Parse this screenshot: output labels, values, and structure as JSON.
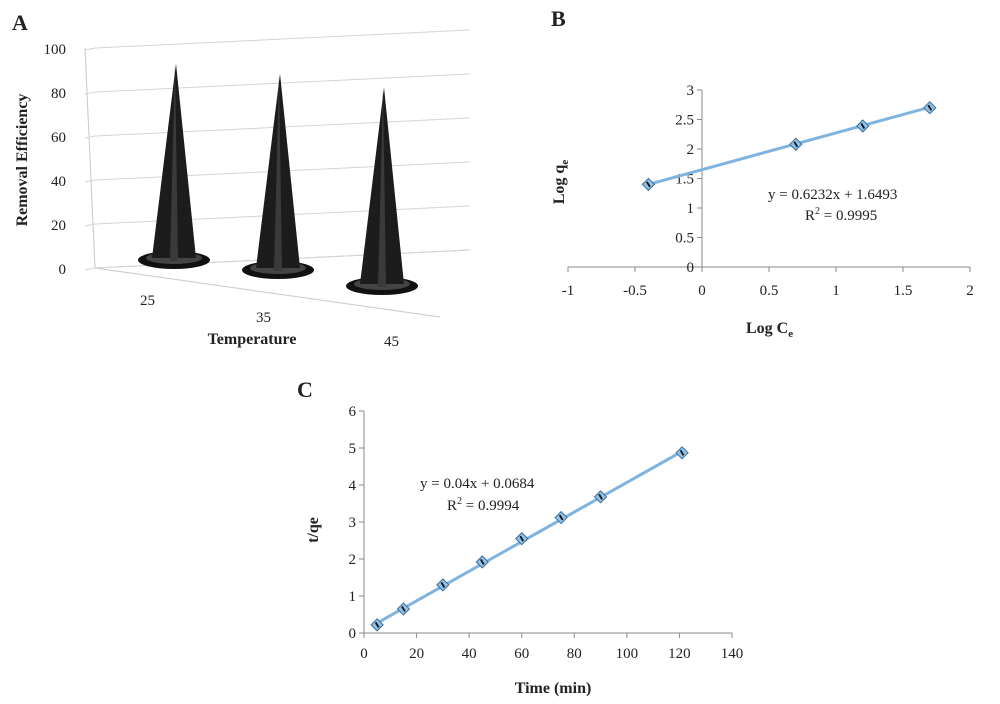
{
  "chart_data": [
    {
      "panel": "A",
      "type": "bar",
      "style": "3d-cone",
      "categories": [
        "25",
        "35",
        "45"
      ],
      "values": [
        82,
        82,
        83
      ],
      "xlabel": "Temperature",
      "ylabel": "Removal Efficiency",
      "ylim": [
        0,
        100
      ],
      "yticks": [
        "0",
        "20",
        "40",
        "60",
        "80",
        "100"
      ],
      "grid": true,
      "bar_color": "#1c1c1c"
    },
    {
      "panel": "B",
      "type": "scatter",
      "x": [
        -0.4,
        0.7,
        1.2,
        1.7
      ],
      "y": [
        1.4,
        2.08,
        2.39,
        2.7
      ],
      "xlabel_main": "Log C",
      "xlabel_sub": "e",
      "ylabel_main": "Log q",
      "ylabel_sub": "e",
      "xlim": [
        -1,
        2
      ],
      "ylim": [
        0,
        3
      ],
      "xticks": [
        "-1",
        "-0.5",
        "0",
        "0.5",
        "1",
        "1.5",
        "2"
      ],
      "yticks": [
        "0",
        "0.5",
        "1",
        "1.5",
        "2",
        "2.5",
        "3"
      ],
      "trendline": {
        "slope": 0.6232,
        "intercept": 1.6493
      },
      "equation": "y = 0.6232x + 1.6493",
      "r2_label": "R",
      "r2_value": " = 0.9995",
      "line_color": "#7fb3e0",
      "marker_color": "#8fc0e8"
    },
    {
      "panel": "C",
      "type": "scatter",
      "x": [
        5,
        15,
        30,
        45,
        60,
        75,
        90,
        121
      ],
      "y": [
        0.22,
        0.65,
        1.3,
        1.92,
        2.55,
        3.12,
        3.68,
        4.87
      ],
      "xlabel": "Time (min)",
      "ylabel": "t/qe",
      "xlim": [
        0,
        140
      ],
      "ylim": [
        0,
        6
      ],
      "xticks": [
        "0",
        "20",
        "40",
        "60",
        "80",
        "100",
        "120",
        "140"
      ],
      "yticks": [
        "0",
        "1",
        "2",
        "3",
        "4",
        "5",
        "6"
      ],
      "trendline": {
        "slope": 0.04,
        "intercept": 0.0684
      },
      "equation": "y = 0.04x + 0.0684",
      "r2_label": "R",
      "r2_value": " = 0.9994",
      "line_color": "#7fb3e0",
      "marker_color": "#8fc0e8"
    }
  ],
  "panel_letters": {
    "a": "A",
    "b": "B",
    "c": "C"
  },
  "superscript_two": "2"
}
